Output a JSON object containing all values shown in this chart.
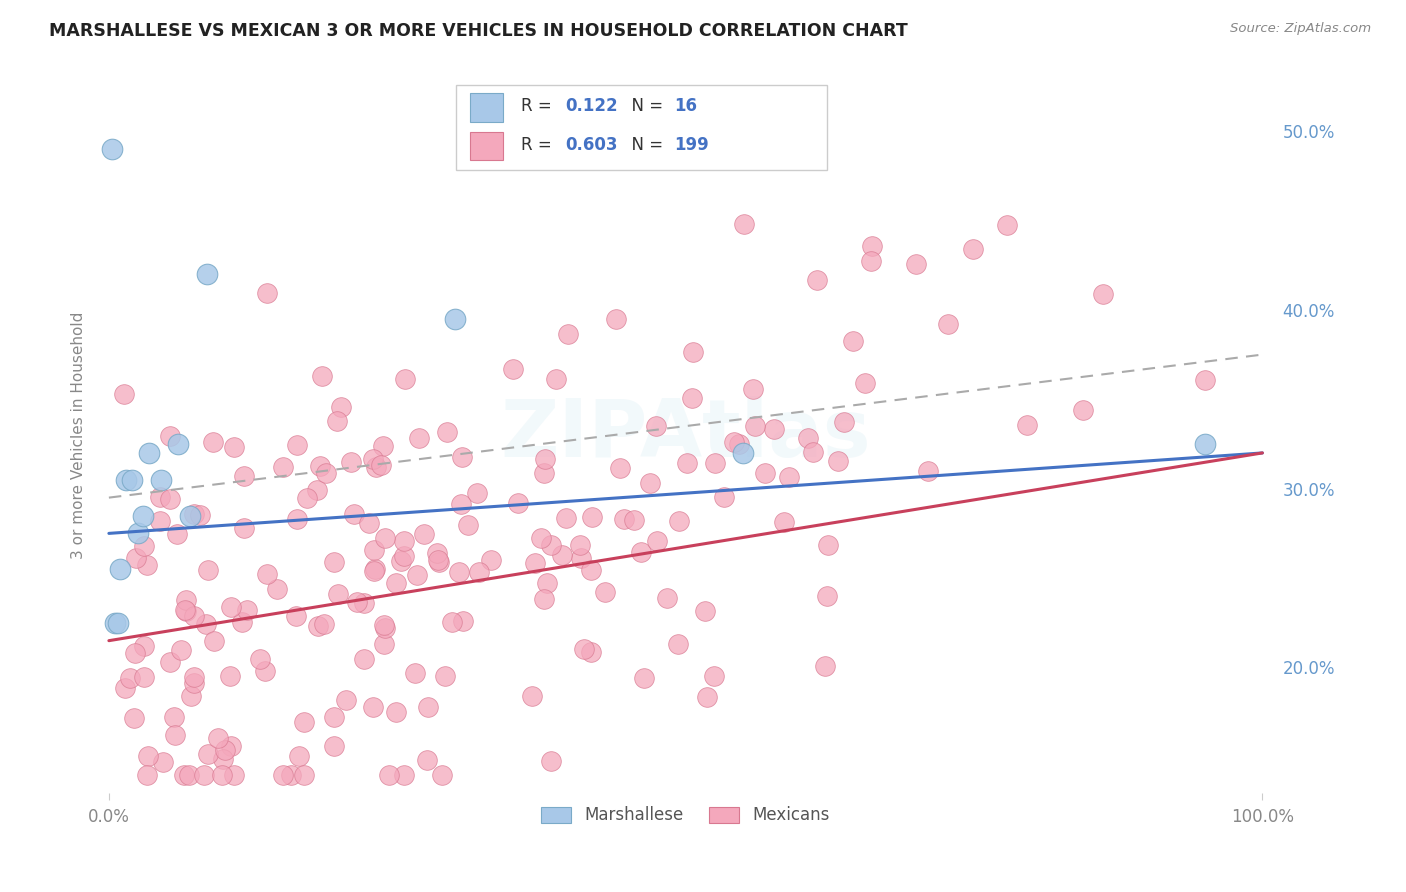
{
  "title": "MARSHALLESE VS MEXICAN 3 OR MORE VEHICLES IN HOUSEHOLD CORRELATION CHART",
  "source": "Source: ZipAtlas.com",
  "ylabel": "3 or more Vehicles in Household",
  "watermark": "ZIPAtlas",
  "legend_blue_r": "0.122",
  "legend_blue_n": "16",
  "legend_pink_r": "0.603",
  "legend_pink_n": "199",
  "marshallese_dot_color": "#a8c8e8",
  "marshallese_dot_edge": "#7aaac8",
  "mexicans_dot_color": "#f4a8bc",
  "mexicans_dot_edge": "#d87890",
  "blue_line_color": "#4472C4",
  "pink_line_color": "#C8405C",
  "dashed_line_color": "#aaaaaa",
  "background_color": "#ffffff",
  "grid_color": "#dddddd",
  "title_color": "#222222",
  "legend_r_color": "#4472C4",
  "right_tick_color": "#6699cc",
  "axis_label_color": "#888888",
  "blue_line_start_y": 27.5,
  "blue_line_end_y": 32.0,
  "pink_line_start_y": 21.5,
  "pink_line_end_y": 32.0,
  "dashed_line_start_y": 29.5,
  "dashed_line_end_y": 37.5,
  "ylim_min": 13,
  "ylim_max": 53,
  "xlim_min": -1,
  "xlim_max": 101
}
